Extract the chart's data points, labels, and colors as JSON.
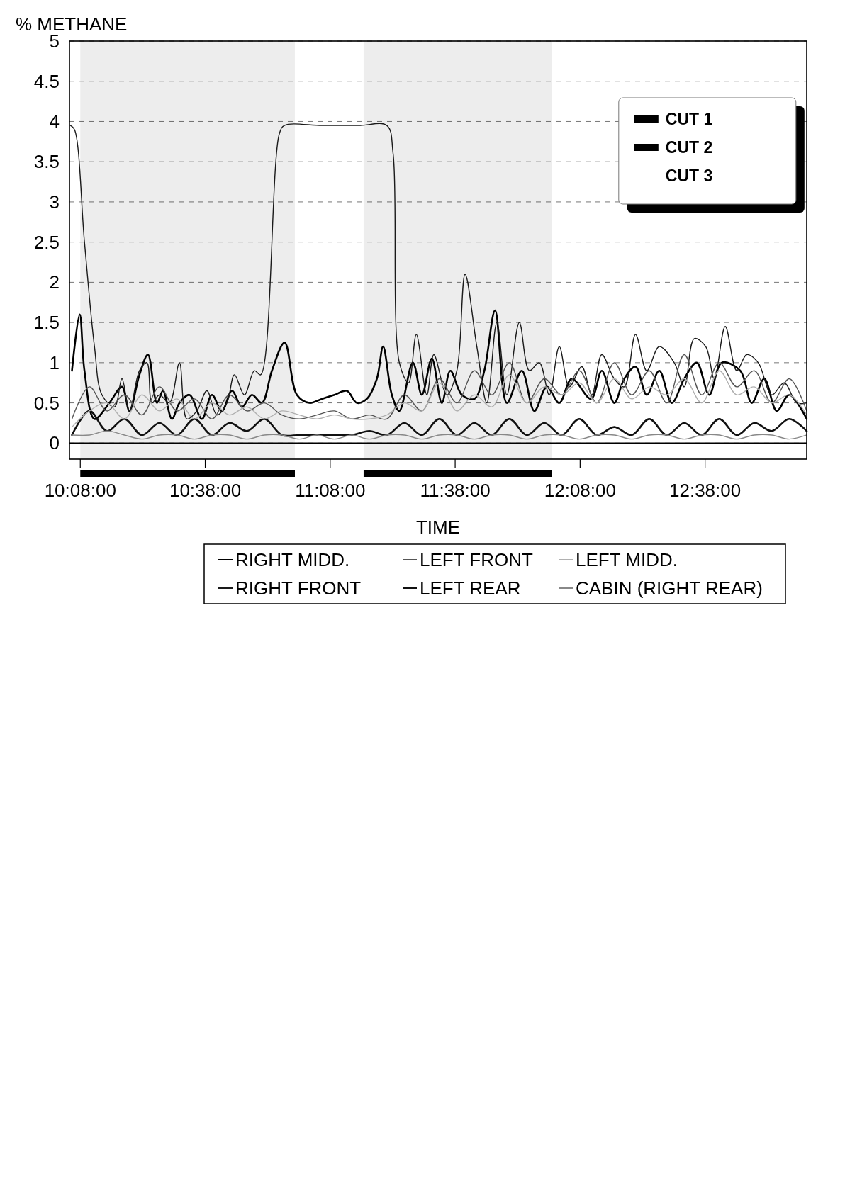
{
  "chart_data": {
    "type": "line",
    "xlabel": "TIME",
    "ylabel": "% METHANE",
    "x": [
      10.1,
      10.17,
      10.24,
      10.31,
      10.38,
      10.45,
      10.52,
      10.59,
      10.66,
      10.73,
      10.8,
      10.87,
      10.94,
      11.01,
      11.08,
      11.15,
      11.22,
      11.29,
      11.36,
      11.43,
      11.5,
      11.57,
      11.64,
      11.71,
      11.78,
      11.85,
      11.92,
      11.99,
      12.06,
      12.13,
      12.2,
      12.27,
      12.34,
      12.41,
      12.48,
      12.55,
      12.62,
      12.69,
      12.76,
      12.83,
      12.9,
      12.97,
      13.04
    ],
    "xlim": [
      10.09,
      13.04
    ],
    "xticks": [
      {
        "value": 10.1333,
        "label": "10:08:00"
      },
      {
        "value": 10.6333,
        "label": "10:38:00"
      },
      {
        "value": 11.1333,
        "label": "11:08:00"
      },
      {
        "value": 11.6333,
        "label": "11:38:00"
      },
      {
        "value": 12.1333,
        "label": "12:08:00"
      },
      {
        "value": 12.6333,
        "label": "12:38:00"
      }
    ],
    "ylim": [
      -0.2,
      5
    ],
    "yticks": [
      0,
      0.5,
      1,
      1.5,
      2,
      2.5,
      3,
      3.5,
      4,
      4.5,
      5
    ],
    "grid": "y",
    "legend": "bottom",
    "series": [
      {
        "name": "RIGHT MIDD.",
        "color": "#000000",
        "x": [
          10.1,
          10.131,
          10.15,
          10.19,
          10.25,
          10.3,
          10.33,
          10.37,
          10.404,
          10.44,
          10.464,
          10.5,
          10.53,
          10.57,
          10.62,
          10.66,
          10.7,
          10.74,
          10.78,
          10.82,
          10.86,
          10.9,
          10.951,
          11.0,
          11.05,
          11.1,
          11.15,
          11.2,
          11.24,
          11.28,
          11.32,
          11.345,
          11.38,
          11.41,
          11.464,
          11.5,
          11.54,
          11.58,
          11.614,
          11.66,
          11.71,
          11.75,
          11.793,
          11.84,
          11.9,
          11.95,
          12.0,
          12.05,
          12.1,
          12.177,
          12.22,
          12.27,
          12.31,
          12.355,
          12.4,
          12.45,
          12.5,
          12.55,
          12.6,
          12.65,
          12.7,
          12.774,
          12.82,
          12.87,
          12.92,
          12.97,
          13.04
        ],
        "values": [
          0.9,
          1.6,
          0.9,
          0.3,
          0.5,
          0.7,
          0.4,
          0.85,
          1.1,
          0.5,
          0.65,
          0.3,
          0.5,
          0.6,
          0.3,
          0.6,
          0.4,
          0.65,
          0.45,
          0.6,
          0.5,
          0.9,
          1.25,
          0.6,
          0.5,
          0.55,
          0.6,
          0.65,
          0.5,
          0.55,
          0.8,
          1.2,
          0.6,
          0.4,
          1.0,
          0.6,
          1.05,
          0.5,
          0.9,
          0.6,
          0.55,
          0.9,
          1.65,
          0.5,
          0.9,
          0.4,
          0.7,
          0.5,
          0.8,
          0.55,
          0.9,
          0.5,
          0.8,
          0.95,
          0.6,
          0.9,
          0.5,
          0.8,
          1.0,
          0.6,
          1.0,
          0.9,
          0.5,
          0.8,
          0.4,
          0.6,
          0.3
        ]
      },
      {
        "name": "RIGHT FRONT",
        "color": "#1a1a1a",
        "x": [
          10.094,
          10.11,
          10.15,
          10.19,
          10.22,
          10.27,
          10.3,
          10.33,
          10.37,
          10.4,
          10.42,
          10.45,
          10.49,
          10.53,
          10.56,
          10.6,
          10.64,
          10.68,
          10.72,
          10.75,
          10.79,
          10.83,
          10.855,
          10.93,
          10.95,
          11.1,
          11.25,
          11.36,
          11.385,
          11.41,
          11.447,
          11.478,
          11.52,
          11.548,
          11.6,
          11.64,
          11.673,
          11.72,
          11.76,
          11.8,
          11.84,
          11.89,
          11.93,
          11.97,
          12.01,
          12.05,
          12.09,
          12.14,
          12.18,
          12.22,
          12.27,
          12.31,
          12.355,
          12.4,
          12.45,
          12.51,
          12.55,
          12.59,
          12.636,
          12.67,
          12.714,
          12.76,
          12.8,
          12.846,
          12.9,
          12.95,
          13.0,
          13.04
        ],
        "values": [
          3.95,
          3.9,
          2.5,
          1.2,
          0.6,
          0.45,
          0.8,
          0.4,
          0.9,
          1.0,
          0.5,
          0.6,
          0.5,
          1.0,
          0.3,
          0.4,
          0.65,
          0.35,
          0.5,
          0.85,
          0.6,
          0.9,
          0.85,
          3.85,
          3.95,
          3.95,
          3.95,
          3.95,
          3.6,
          1.0,
          0.75,
          1.35,
          0.6,
          1.1,
          0.6,
          0.9,
          2.1,
          1.2,
          0.5,
          1.5,
          0.6,
          1.5,
          0.9,
          1.0,
          0.6,
          1.2,
          0.7,
          0.95,
          0.6,
          1.1,
          0.8,
          0.7,
          1.35,
          0.9,
          1.2,
          1.0,
          0.7,
          1.3,
          1.2,
          0.8,
          1.45,
          0.9,
          1.1,
          1.0,
          0.6,
          0.75,
          0.5,
          0.5
        ]
      },
      {
        "name": "LEFT FRONT",
        "color": "#555555",
        "values": [
          0.3,
          0.7,
          0.4,
          0.6,
          0.35,
          0.7,
          0.4,
          0.55,
          0.3,
          0.6,
          0.4,
          0.5,
          0.35,
          0.3,
          0.35,
          0.4,
          0.3,
          0.35,
          0.3,
          0.6,
          0.4,
          0.8,
          0.5,
          0.9,
          0.6,
          1.0,
          0.5,
          0.8,
          0.6,
          0.9,
          0.5,
          1.0,
          0.6,
          0.9,
          0.5,
          1.1,
          0.6,
          1.0,
          0.7,
          0.9,
          0.5,
          0.8,
          0.4
        ]
      },
      {
        "name": "LEFT REAR",
        "color": "#111111",
        "values": [
          0.1,
          0.4,
          0.15,
          0.3,
          0.1,
          0.25,
          0.1,
          0.3,
          0.1,
          0.25,
          0.15,
          0.3,
          0.1,
          0.1,
          0.1,
          0.1,
          0.1,
          0.15,
          0.1,
          0.25,
          0.1,
          0.3,
          0.1,
          0.25,
          0.1,
          0.3,
          0.1,
          0.25,
          0.1,
          0.3,
          0.1,
          0.2,
          0.1,
          0.3,
          0.1,
          0.25,
          0.1,
          0.3,
          0.1,
          0.25,
          0.15,
          0.3,
          0.15
        ]
      },
      {
        "name": "LEFT MIDD.",
        "color": "#b0b0b0",
        "values": [
          0.2,
          0.4,
          0.5,
          0.3,
          0.6,
          0.4,
          0.55,
          0.3,
          0.5,
          0.35,
          0.45,
          0.3,
          0.4,
          0.35,
          0.3,
          0.35,
          0.3,
          0.3,
          0.35,
          0.5,
          0.4,
          0.75,
          0.4,
          0.6,
          0.45,
          0.85,
          0.5,
          0.7,
          0.6,
          0.75,
          0.5,
          0.8,
          0.55,
          0.7,
          0.6,
          0.8,
          0.5,
          0.9,
          0.6,
          0.7,
          0.5,
          0.6,
          0.35
        ]
      },
      {
        "name": "CABIN (RIGHT REAR)",
        "color": "#888888",
        "values": [
          0.1,
          0.1,
          0.15,
          0.1,
          0.05,
          0.1,
          0.1,
          0.05,
          0.1,
          0.1,
          0.05,
          0.1,
          0.1,
          0.05,
          0.1,
          0.05,
          0.1,
          0.05,
          0.1,
          0.1,
          0.05,
          0.1,
          0.1,
          0.05,
          0.1,
          0.1,
          0.05,
          0.1,
          0.1,
          0.05,
          0.1,
          0.1,
          0.05,
          0.1,
          0.1,
          0.05,
          0.1,
          0.1,
          0.05,
          0.1,
          0.1,
          0.05,
          0.1
        ]
      }
    ],
    "bands": [
      {
        "axis": "x",
        "from": 10.1333,
        "to": 10.992,
        "color": "#000000"
      },
      {
        "axis": "x",
        "from": 11.267,
        "to": 12.02,
        "color": "#000000"
      }
    ],
    "ref_lines": [
      {
        "axis": "y",
        "value": 0
      }
    ],
    "annotations": [
      "CUT 1",
      "CUT 2",
      "CUT 3"
    ]
  }
}
